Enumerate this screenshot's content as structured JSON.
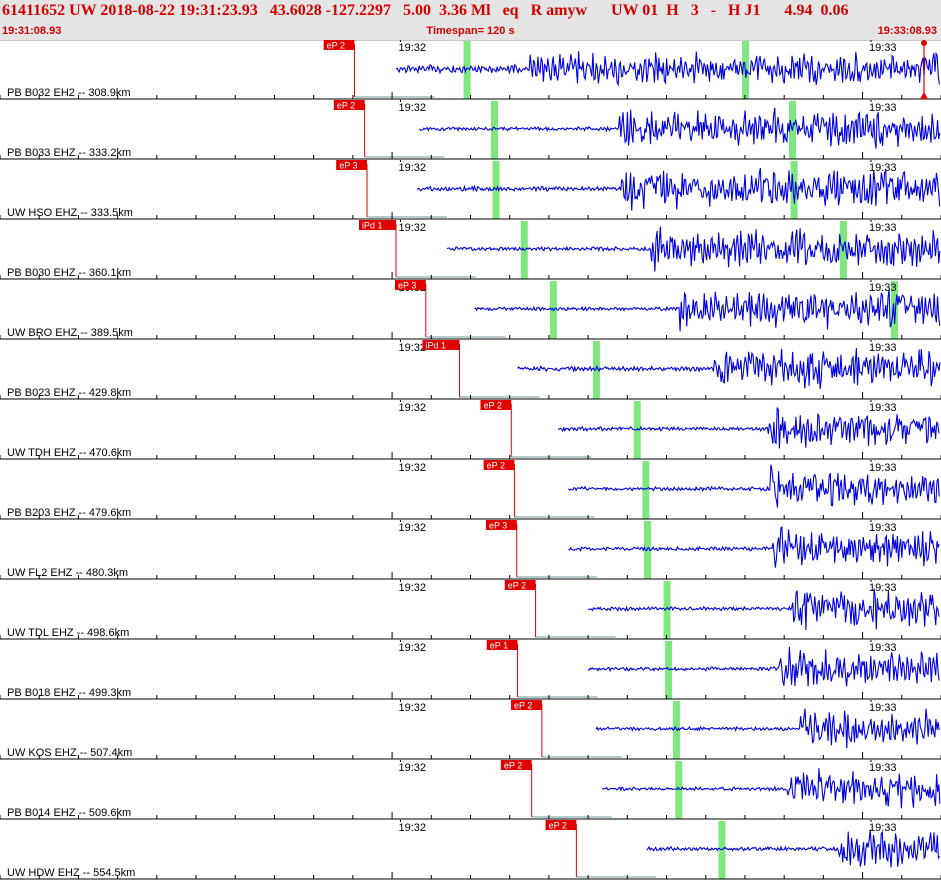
{
  "header": {
    "event_line": "61411652 UW 2018-08-22 19:31:23.93   43.6028 -127.2297   5.00  3.36 Ml   eq   R amyw      UW 01  H   3   -   H J1      4.94  0.06",
    "start_time": "19:31:08.93",
    "timespan": "Timespan= 120 s",
    "end_time": "19:33:08.93"
  },
  "colors": {
    "header_text": "#d40000",
    "header_bg": "#e4e4e4",
    "trace": "#0000e0",
    "pick": "#e00000",
    "pick_label_bg": "#e00000",
    "s_window": "#7ee87e",
    "axis": "#000000",
    "baseline": "#6a9a9a"
  },
  "chart_data": {
    "type": "seismogram",
    "start_time": "19:31:08.93",
    "timespan_s": 120,
    "minute_labels": [
      {
        "label": "19:32",
        "t_s": 51.07
      },
      {
        "label": "19:33",
        "t_s": 111.07
      }
    ],
    "traces": [
      {
        "station": "PB B032 EH2 -- 308.9km",
        "pick_label": "eP 2",
        "pick_t_s": 45.2,
        "s_marks_t_s": [
          59.5,
          95.0
        ],
        "signal_start_t_s": 50.5,
        "p_energy_t_s": 68.0,
        "amplitude": 0.85,
        "noise": 0.55
      },
      {
        "station": "PB B033 EHZ -- 333.2km",
        "pick_label": "eP 2",
        "pick_t_s": 46.5,
        "s_marks_t_s": [
          63.0,
          101.0
        ],
        "signal_start_t_s": 53.5,
        "p_energy_t_s": 79.5,
        "amplitude": 0.95,
        "noise": 0.12
      },
      {
        "station": "UW HSO EHZ -- 333.5km",
        "pick_label": "eP 3",
        "pick_t_s": 46.8,
        "s_marks_t_s": [
          63.2,
          101.2
        ],
        "signal_start_t_s": 53.2,
        "p_energy_t_s": 79.8,
        "amplitude": 0.95,
        "noise": 0.2
      },
      {
        "station": "PB B030 EHZ -- 360.1km",
        "pick_label": "iPd 1",
        "pick_t_s": 50.5,
        "s_marks_t_s": [
          66.8,
          107.5
        ],
        "signal_start_t_s": 57.0,
        "p_energy_t_s": 83.5,
        "amplitude": 0.95,
        "noise": 0.12
      },
      {
        "station": "UW BRO EHZ -- 389.5km",
        "pick_label": "eP 3",
        "pick_t_s": 54.3,
        "s_marks_t_s": [
          70.5,
          114.0
        ],
        "signal_start_t_s": 60.5,
        "p_energy_t_s": 87.2,
        "amplitude": 0.95,
        "noise": 0.1
      },
      {
        "station": "PB B023 EHZ -- 429.8km",
        "pick_label": "iPd 1",
        "pick_t_s": 58.6,
        "s_marks_t_s": [
          76.0
        ],
        "signal_start_t_s": 66.0,
        "p_energy_t_s": 91.5,
        "amplitude": 0.95,
        "noise": 0.25
      },
      {
        "station": "UW TDH EHZ -- 470.6km",
        "pick_label": "eP 2",
        "pick_t_s": 65.2,
        "s_marks_t_s": [
          81.2
        ],
        "signal_start_t_s": 71.2,
        "p_energy_t_s": 98.5,
        "amplitude": 0.95,
        "noise": 0.12
      },
      {
        "station": "PB B203 EHZ -- 479.6km",
        "pick_label": "eP 2",
        "pick_t_s": 65.6,
        "s_marks_t_s": [
          82.3
        ],
        "signal_start_t_s": 72.5,
        "p_energy_t_s": 98.8,
        "amplitude": 0.95,
        "noise": 0.12
      },
      {
        "station": "UW FL2 EHZ -- 480.3km",
        "pick_label": "eP 3",
        "pick_t_s": 65.9,
        "s_marks_t_s": [
          82.5
        ],
        "signal_start_t_s": 72.5,
        "p_energy_t_s": 99.0,
        "amplitude": 0.95,
        "noise": 0.12
      },
      {
        "station": "UW TDL EHZ -- 498.6km",
        "pick_label": "eP 2",
        "pick_t_s": 68.3,
        "s_marks_t_s": [
          85.0
        ],
        "signal_start_t_s": 75.0,
        "p_energy_t_s": 101.5,
        "amplitude": 0.95,
        "noise": 0.12
      },
      {
        "station": "PB B018 EHZ -- 499.3km",
        "pick_label": "eP 1",
        "pick_t_s": 66.0,
        "s_marks_t_s": [
          85.2
        ],
        "signal_start_t_s": 75.0,
        "p_energy_t_s": 99.8,
        "amplitude": 0.95,
        "noise": 0.12
      },
      {
        "station": "UW KOS EHZ -- 507.4km",
        "pick_label": "eP 2",
        "pick_t_s": 69.1,
        "s_marks_t_s": [
          86.2
        ],
        "signal_start_t_s": 76.0,
        "p_energy_t_s": 102.6,
        "amplitude": 0.95,
        "noise": 0.1
      },
      {
        "station": "PB B014 EHZ -- 509.6km",
        "pick_label": "eP 2",
        "pick_t_s": 67.8,
        "s_marks_t_s": [
          86.5
        ],
        "signal_start_t_s": 76.8,
        "p_energy_t_s": 101.0,
        "amplitude": 0.95,
        "noise": 0.1
      },
      {
        "station": "UW HDW EHZ -- 554.5km",
        "pick_label": "eP 2",
        "pick_t_s": 73.5,
        "s_marks_t_s": [
          92.0
        ],
        "signal_start_t_s": 82.5,
        "p_energy_t_s": 107.5,
        "amplitude": 0.95,
        "noise": 0.12
      }
    ]
  }
}
